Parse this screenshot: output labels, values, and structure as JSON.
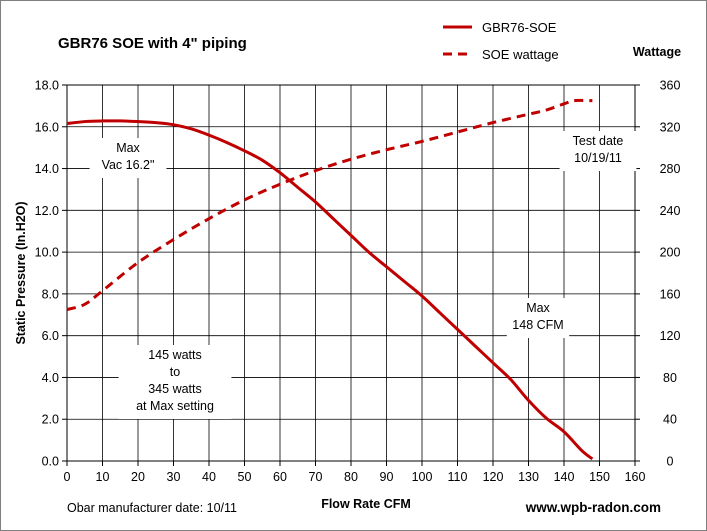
{
  "chart_data": {
    "type": "line",
    "title": "GBR76 SOE  with 4\" piping",
    "xlabel": "Flow Rate  CFM",
    "ylabel": "Static Pressure (In.H2O)",
    "y2label": "Wattage",
    "xlim": [
      0,
      160
    ],
    "ylim": [
      0,
      18
    ],
    "y2lim": [
      0,
      360
    ],
    "x_ticks": [
      "0",
      "10",
      "20",
      "30",
      "40",
      "50",
      "60",
      "70",
      "80",
      "90",
      "100",
      "110",
      "120",
      "130",
      "140",
      "150",
      "160"
    ],
    "y_ticks": [
      "0.0",
      "2.0",
      "4.0",
      "6.0",
      "8.0",
      "10.0",
      "12.0",
      "14.0",
      "16.0",
      "18.0"
    ],
    "y2_ticks": [
      "0",
      "40",
      "80",
      "120",
      "160",
      "200",
      "240",
      "280",
      "320",
      "360"
    ],
    "grid": true,
    "legend_position": "top-right",
    "series": [
      {
        "name": "GBR76-SOE",
        "axis": "left",
        "style": "solid",
        "color": "#c00000",
        "x": [
          0,
          5,
          10,
          15,
          20,
          25,
          30,
          35,
          40,
          45,
          50,
          55,
          60,
          65,
          70,
          75,
          80,
          85,
          90,
          95,
          100,
          105,
          110,
          115,
          120,
          125,
          130,
          135,
          140,
          145,
          148
        ],
        "y": [
          16.15,
          16.25,
          16.28,
          16.28,
          16.25,
          16.2,
          16.1,
          15.9,
          15.6,
          15.25,
          14.85,
          14.4,
          13.8,
          13.1,
          12.4,
          11.6,
          10.8,
          10.0,
          9.3,
          8.6,
          7.9,
          7.1,
          6.3,
          5.5,
          4.7,
          3.9,
          2.9,
          2.05,
          1.4,
          0.5,
          0.1
        ]
      },
      {
        "name": "SOE wattage",
        "axis": "right",
        "style": "dashed",
        "color": "#c00000",
        "x": [
          0,
          5,
          10,
          20,
          30,
          40,
          50,
          60,
          70,
          80,
          90,
          100,
          110,
          120,
          130,
          135,
          140,
          143,
          148
        ],
        "y": [
          145,
          150,
          163,
          190,
          212,
          232,
          250,
          265,
          278,
          289,
          298,
          306,
          315,
          324,
          332,
          336,
          342,
          345,
          345
        ]
      }
    ],
    "annotations": [
      {
        "key": "max_vac",
        "lines": [
          "Max",
          "Vac 16.2\""
        ]
      },
      {
        "key": "test_date",
        "lines": [
          "Test date",
          "10/19/11"
        ]
      },
      {
        "key": "max_cfm",
        "lines": [
          "Max",
          "148 CFM"
        ]
      },
      {
        "key": "watts_range",
        "lines": [
          "145 watts",
          "to",
          "345 watts",
          "at Max setting"
        ]
      }
    ]
  },
  "footer": {
    "manufacturer_date": "Obar  manufacturer date: 10/11",
    "website": "www.wpb-radon.com"
  }
}
